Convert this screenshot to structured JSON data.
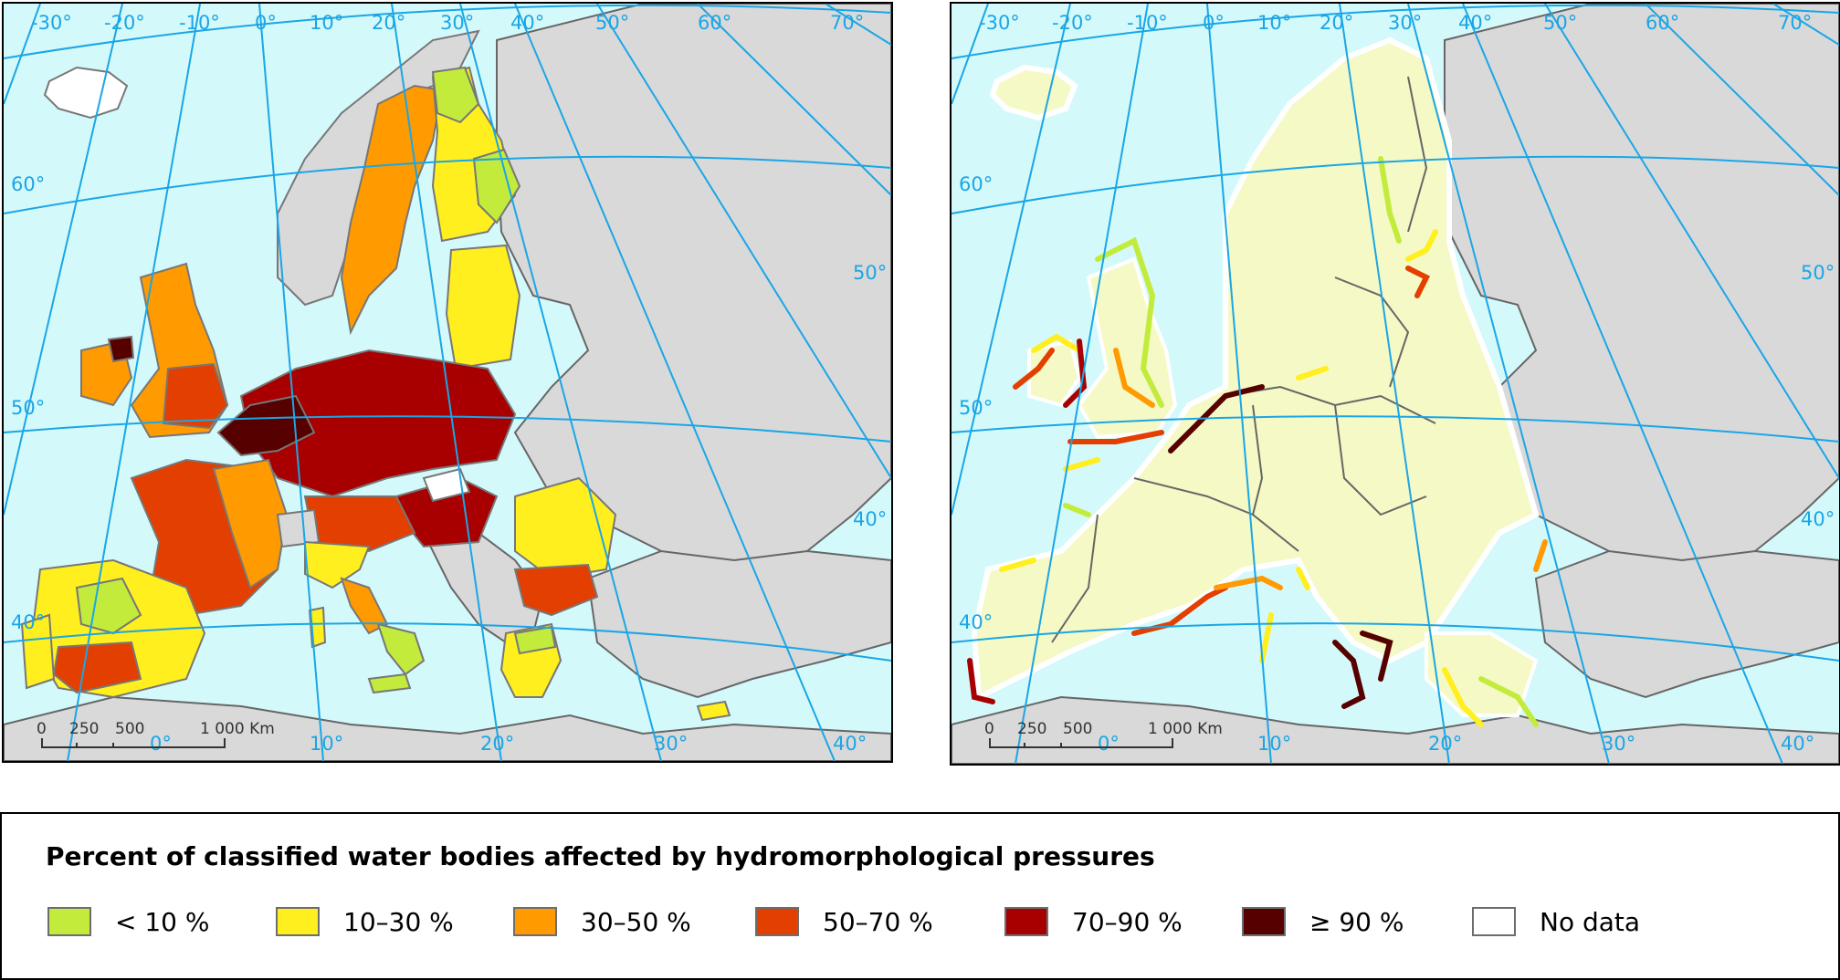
{
  "legend": {
    "title": "Percent of classified water bodies affected by hydromorphological pressures",
    "items": [
      {
        "label": "< 10 %",
        "color": "#c3eb3c"
      },
      {
        "label": "10–30 %",
        "color": "#ffef1e"
      },
      {
        "label": "30–50 %",
        "color": "#ff9a00"
      },
      {
        "label": "50–70 %",
        "color": "#e33f00"
      },
      {
        "label": "70–90 %",
        "color": "#a80000"
      },
      {
        "label": "≥ 90 %",
        "color": "#560000"
      },
      {
        "label": "No data",
        "color": "#ffffff"
      }
    ]
  },
  "colors": {
    "sea": "#d4f9fb",
    "land_other": "#d9d9d9",
    "land_eu_coastal": "#f5f9c5",
    "graticule": "#1aa6e6",
    "border": "#666666"
  },
  "maps": [
    {
      "id": "rivers-lakes",
      "longitude_labels_top": [
        "-30°",
        "-20°",
        "-10°",
        "0°",
        "10°",
        "20°",
        "30°",
        "40°",
        "50°",
        "60°",
        "70°"
      ],
      "longitude_labels_bottom": [
        "0°",
        "10°",
        "20°",
        "30°",
        "40°"
      ],
      "latitude_labels": [
        "60°",
        "50°",
        "40°"
      ],
      "latitude_labels_right": [
        "50°",
        "40°"
      ],
      "scale_bar": {
        "ticks": [
          "0",
          "250",
          "500",
          "1 000 Km"
        ]
      }
    },
    {
      "id": "coastal-transitional",
      "longitude_labels_top": [
        "-30°",
        "-20°",
        "-10°",
        "0°",
        "10°",
        "20°",
        "30°",
        "40°",
        "50°",
        "60°",
        "70°"
      ],
      "longitude_labels_bottom": [
        "0°",
        "10°",
        "20°",
        "30°",
        "40°"
      ],
      "latitude_labels": [
        "60°",
        "50°",
        "40°"
      ],
      "latitude_labels_right": [
        "50°",
        "40°"
      ],
      "scale_bar": {
        "ticks": [
          "0",
          "250",
          "500",
          "1 000 Km"
        ]
      }
    }
  ]
}
